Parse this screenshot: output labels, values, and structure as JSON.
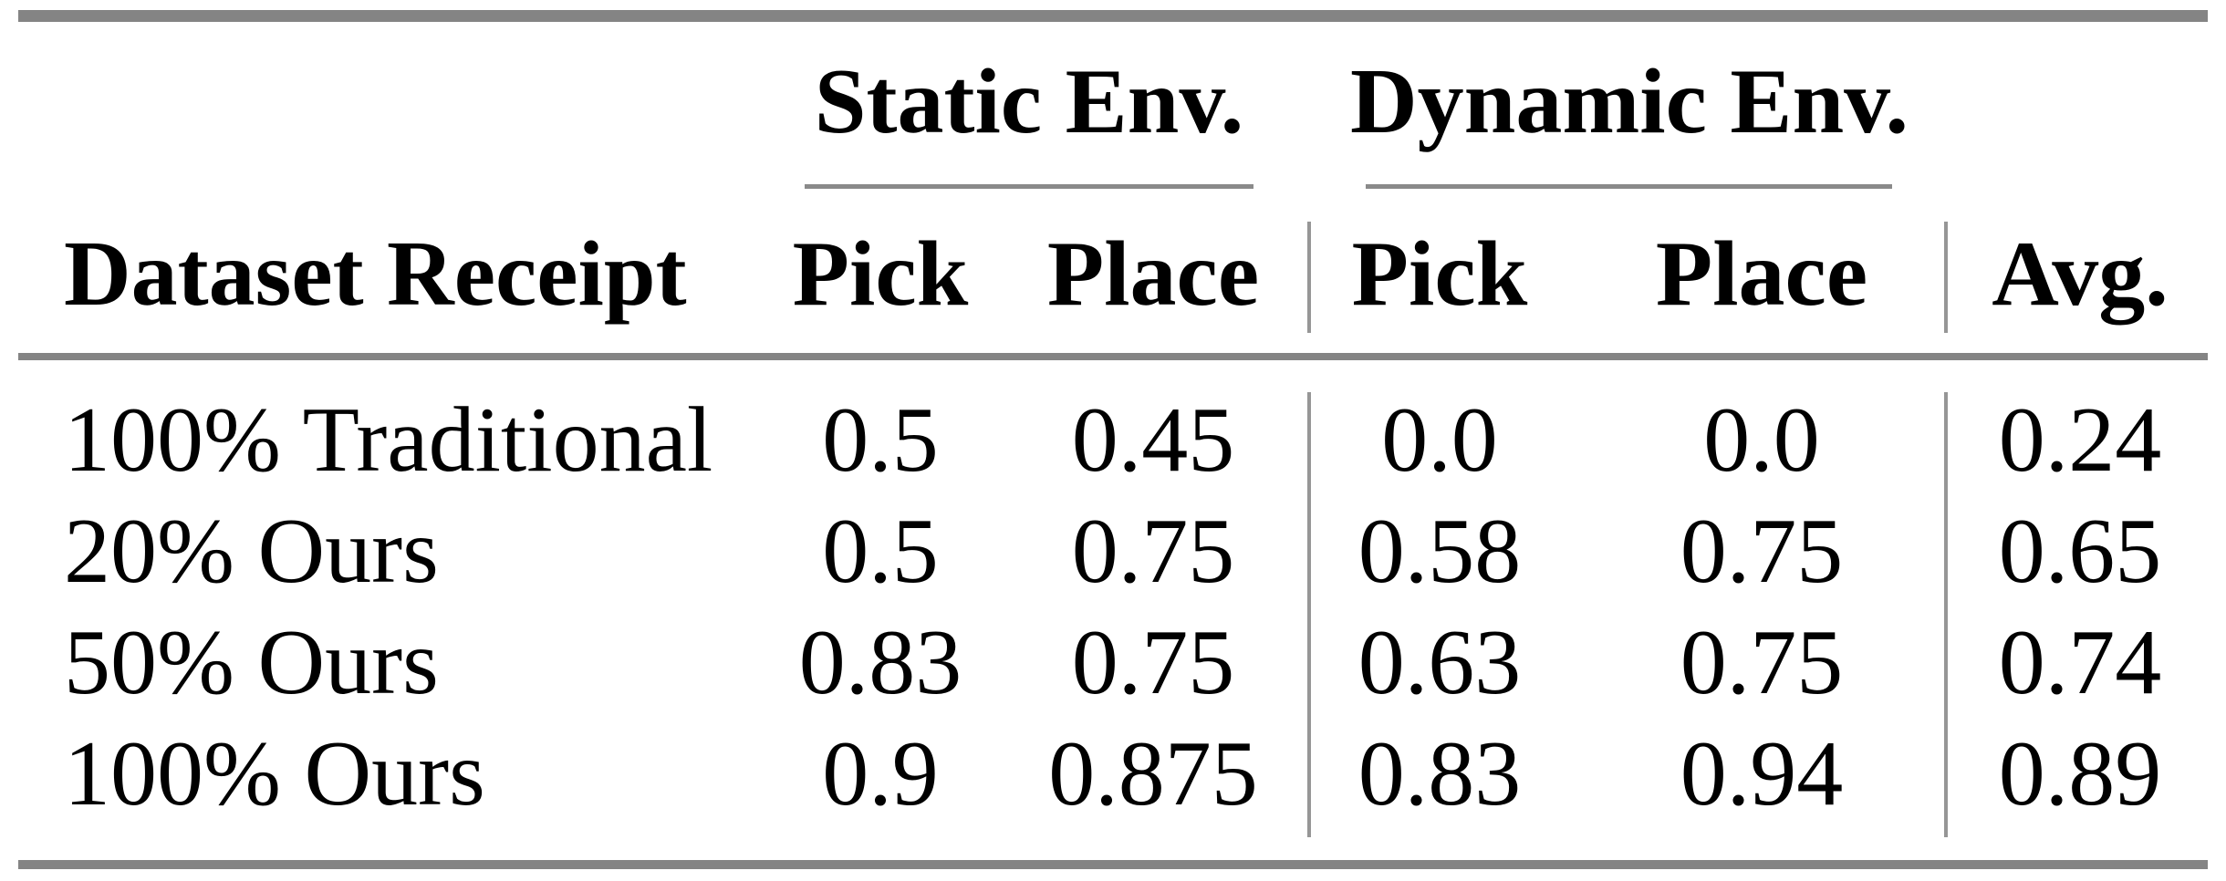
{
  "table": {
    "group_headers": {
      "static": "Static Env.",
      "dynamic": "Dynamic Env."
    },
    "columns": {
      "label": "Dataset Receipt",
      "static_pick": "Pick",
      "static_place": "Place",
      "dynamic_pick": "Pick",
      "dynamic_place": "Place",
      "avg": "Avg."
    },
    "rows": [
      {
        "label": "100% Traditional",
        "static_pick": "0.5",
        "static_place": "0.45",
        "dynamic_pick": "0.0",
        "dynamic_place": "0.0",
        "avg": "0.24"
      },
      {
        "label": "20% Ours",
        "static_pick": "0.5",
        "static_place": "0.75",
        "dynamic_pick": "0.58",
        "dynamic_place": "0.75",
        "avg": "0.65"
      },
      {
        "label": "50% Ours",
        "static_pick": "0.83",
        "static_place": "0.75",
        "dynamic_pick": "0.63",
        "dynamic_place": "0.75",
        "avg": "0.74"
      },
      {
        "label": "100% Ours",
        "static_pick": "0.9",
        "static_place": "0.875",
        "dynamic_pick": "0.83",
        "dynamic_place": "0.94",
        "avg": "0.89"
      }
    ],
    "colors": {
      "text": "#000000",
      "heavy_rule": "#848484",
      "light_rule": "#8a8a8a",
      "vertical_rule": "#969696",
      "background": "#ffffff"
    }
  },
  "chart_data": {
    "type": "table",
    "title": "",
    "column_groups": [
      "",
      "Static Env.",
      "Static Env.",
      "Dynamic Env.",
      "Dynamic Env.",
      ""
    ],
    "columns": [
      "Dataset Receipt",
      "Pick",
      "Place",
      "Pick",
      "Place",
      "Avg."
    ],
    "rows": [
      [
        "100% Traditional",
        0.5,
        0.45,
        0.0,
        0.0,
        0.24
      ],
      [
        "20% Ours",
        0.5,
        0.75,
        0.58,
        0.75,
        0.65
      ],
      [
        "50% Ours",
        0.83,
        0.75,
        0.63,
        0.75,
        0.74
      ],
      [
        "100% Ours",
        0.9,
        0.875,
        0.83,
        0.94,
        0.89
      ]
    ]
  }
}
